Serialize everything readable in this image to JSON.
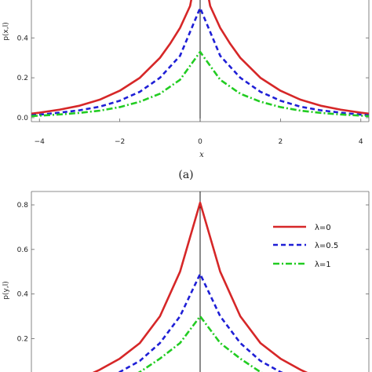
{
  "chart_data": [
    {
      "type": "line",
      "caption": "(a)",
      "xlabel": "x",
      "ylabel": "p(x,l)",
      "xlim": [
        -4.2,
        4.2
      ],
      "ylim": [
        -0.02,
        0.59
      ],
      "xticks": [
        -4,
        -2,
        0,
        2,
        4
      ],
      "xtick_labels": [
        "−4",
        "−2",
        "0",
        "2",
        "4"
      ],
      "yticks": [
        0.0,
        0.2,
        0.4
      ],
      "ytick_labels": [
        "0.0",
        "0.2",
        "0.4"
      ],
      "series": [
        {
          "color": "#d62728",
          "dash": "solid",
          "x": [
            -4.2,
            -4,
            -3.5,
            -3,
            -2.5,
            -2,
            -1.5,
            -1,
            -0.75,
            -0.5,
            -0.25,
            0,
            0.25,
            0.5,
            0.75,
            1,
            1.5,
            2,
            2.5,
            3,
            3.5,
            4,
            4.2
          ],
          "y": [
            0.02,
            0.025,
            0.04,
            0.06,
            0.09,
            0.135,
            0.2,
            0.3,
            0.37,
            0.45,
            0.56,
            0.82,
            0.56,
            0.45,
            0.37,
            0.3,
            0.2,
            0.135,
            0.09,
            0.06,
            0.04,
            0.025,
            0.02
          ]
        },
        {
          "color": "#1f1fd6",
          "dash": "dashed",
          "x": [
            -4.2,
            -4,
            -3.5,
            -3,
            -2.5,
            -2,
            -1.5,
            -1,
            -0.5,
            0,
            0.5,
            1,
            1.5,
            2,
            2.5,
            3,
            3.5,
            4,
            4.2
          ],
          "y": [
            0.012,
            0.015,
            0.025,
            0.037,
            0.055,
            0.085,
            0.13,
            0.2,
            0.31,
            0.55,
            0.31,
            0.2,
            0.13,
            0.085,
            0.055,
            0.037,
            0.025,
            0.015,
            0.012
          ]
        },
        {
          "color": "#22cc22",
          "dash": "dashdot",
          "x": [
            -4.2,
            -4,
            -3.5,
            -3,
            -2.5,
            -2,
            -1.5,
            -1,
            -0.5,
            0,
            0.5,
            1,
            1.5,
            2,
            2.5,
            3,
            3.5,
            4,
            4.2
          ],
          "y": [
            0.008,
            0.01,
            0.016,
            0.024,
            0.035,
            0.053,
            0.08,
            0.12,
            0.19,
            0.33,
            0.19,
            0.12,
            0.08,
            0.053,
            0.035,
            0.024,
            0.016,
            0.01,
            0.008
          ]
        }
      ]
    },
    {
      "type": "line",
      "xlabel": "",
      "ylabel": "p(y,l)",
      "xlim": [
        -4.2,
        4.2
      ],
      "ylim": [
        0.05,
        0.86
      ],
      "yticks": [
        0.2,
        0.4,
        0.6,
        0.8
      ],
      "ytick_labels": [
        "0.2",
        "0.4",
        "0.6",
        "0.8"
      ],
      "legend_position": "top-right",
      "series": [
        {
          "name": "λ=0",
          "color": "#d62728",
          "dash": "solid",
          "x": [
            -2.8,
            -2.5,
            -2,
            -1.5,
            -1,
            -0.5,
            0,
            0.5,
            1,
            1.5,
            2,
            2.5,
            2.8
          ],
          "y": [
            0.035,
            0.06,
            0.11,
            0.18,
            0.3,
            0.5,
            0.81,
            0.5,
            0.3,
            0.18,
            0.11,
            0.06,
            0.035
          ]
        },
        {
          "name": "λ=0.5",
          "color": "#1f1fd6",
          "dash": "dashed",
          "x": [
            -2.2,
            -2,
            -1.5,
            -1,
            -0.5,
            0,
            0.5,
            1,
            1.5,
            2,
            2.2
          ],
          "y": [
            0.035,
            0.05,
            0.1,
            0.18,
            0.3,
            0.49,
            0.3,
            0.18,
            0.1,
            0.05,
            0.035
          ]
        },
        {
          "name": "λ=1",
          "color": "#22cc22",
          "dash": "dashdot",
          "x": [
            -1.6,
            -1.5,
            -1,
            -0.5,
            0,
            0.5,
            1,
            1.5,
            1.6
          ],
          "y": [
            0.04,
            0.05,
            0.11,
            0.18,
            0.3,
            0.18,
            0.11,
            0.05,
            0.04
          ]
        }
      ]
    }
  ]
}
